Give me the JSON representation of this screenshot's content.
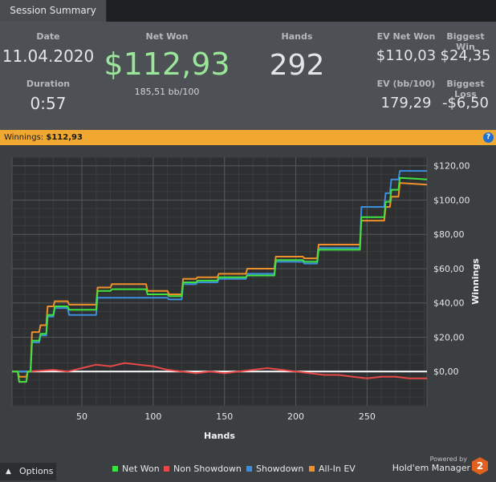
{
  "tab": {
    "label": "Session Summary"
  },
  "summary": {
    "date_label": "Date",
    "date_value": "11.04.2020",
    "duration_label": "Duration",
    "duration_value": "0:57",
    "net_won_label": "Net Won",
    "net_won_value": "$112,93",
    "bb_per_100": "185,51 bb/100",
    "hands_label": "Hands",
    "hands_value": "292",
    "ev_net_won_label": "EV Net Won",
    "ev_net_won_value": "$110,03",
    "biggest_win_label": "Biggest Win",
    "biggest_win_value": "$24,35",
    "ev_bb_label": "EV (bb/100)",
    "ev_bb_value": "179,29",
    "biggest_loss_label": "Biggest Loss",
    "biggest_loss_value": "-$6,50"
  },
  "winnings_bar": {
    "label": "Winnings:",
    "value": "$112,93",
    "help_icon": "question-icon"
  },
  "options": {
    "label": "Options",
    "icon": "caret-up-icon"
  },
  "brand": {
    "powered_by": "Powered by",
    "name": "Hold'em Manager",
    "badge": "2"
  },
  "chart_data": {
    "type": "line",
    "xlabel": "Hands",
    "ylabel": "Winnings",
    "xlim": [
      1,
      292
    ],
    "ylim": [
      -20,
      125
    ],
    "x_ticks": [
      50,
      100,
      150,
      200,
      250
    ],
    "x_tick_labels": [
      "50",
      "100",
      "150",
      "200",
      "250"
    ],
    "y_ticks": [
      0,
      20,
      40,
      60,
      80,
      100,
      120
    ],
    "y_tick_labels": [
      "$0,00",
      "$20,00",
      "$40,00",
      "$60,00",
      "$80,00",
      "$100,00",
      "$120,00"
    ],
    "grid": true,
    "legend": "bottom",
    "series": [
      {
        "name": "Net Won",
        "color": "#3fe33f",
        "x": [
          1,
          5,
          6,
          11,
          12,
          14,
          15,
          20,
          21,
          25,
          26,
          30,
          31,
          40,
          41,
          60,
          61,
          70,
          71,
          95,
          96,
          110,
          111,
          120,
          121,
          130,
          131,
          145,
          146,
          165,
          166,
          185,
          186,
          205,
          206,
          215,
          216,
          245,
          246,
          262,
          263,
          266,
          267,
          272,
          273,
          292
        ],
        "y": [
          0,
          0,
          -6,
          -6,
          0,
          0,
          18,
          18,
          22,
          22,
          33,
          33,
          38,
          38,
          36,
          36,
          47,
          47,
          48,
          48,
          45,
          45,
          44,
          44,
          52,
          52,
          53,
          53,
          55,
          55,
          56,
          56,
          65,
          65,
          64,
          64,
          71,
          71,
          90,
          90,
          99,
          99,
          106,
          106,
          113,
          112
        ]
      },
      {
        "name": "Non Showdown",
        "color": "#e84848",
        "x": [
          1,
          5,
          6,
          11,
          12,
          30,
          40,
          50,
          60,
          70,
          80,
          90,
          100,
          110,
          120,
          130,
          140,
          150,
          160,
          170,
          180,
          190,
          200,
          210,
          220,
          230,
          240,
          250,
          260,
          270,
          280,
          292
        ],
        "y": [
          0,
          0,
          -6,
          -6,
          0,
          1,
          0,
          2,
          4,
          3,
          5,
          4,
          3,
          1,
          0,
          -1,
          0,
          -1,
          0,
          1,
          2,
          1,
          0,
          -1,
          -2,
          -2,
          -3,
          -4,
          -3,
          -3,
          -4,
          -4
        ]
      },
      {
        "name": "Showdown",
        "color": "#3a8fe0",
        "x": [
          1,
          11,
          12,
          14,
          15,
          20,
          21,
          25,
          26,
          30,
          31,
          40,
          41,
          60,
          61,
          95,
          96,
          110,
          111,
          120,
          121,
          130,
          131,
          145,
          146,
          165,
          166,
          185,
          186,
          205,
          206,
          215,
          216,
          245,
          246,
          262,
          263,
          266,
          267,
          272,
          273,
          292
        ],
        "y": [
          0,
          0,
          0,
          0,
          17,
          17,
          21,
          21,
          32,
          32,
          37,
          37,
          33,
          33,
          43,
          43,
          43,
          43,
          42,
          42,
          51,
          51,
          52,
          52,
          54,
          54,
          57,
          57,
          64,
          64,
          63,
          63,
          72,
          72,
          96,
          96,
          104,
          104,
          112,
          112,
          117,
          117
        ]
      },
      {
        "name": "All-In EV",
        "color": "#f0902a",
        "x": [
          1,
          5,
          6,
          11,
          12,
          14,
          15,
          20,
          21,
          25,
          26,
          30,
          31,
          40,
          41,
          60,
          61,
          70,
          71,
          95,
          96,
          110,
          111,
          120,
          121,
          130,
          131,
          145,
          146,
          165,
          166,
          185,
          186,
          205,
          206,
          215,
          216,
          245,
          246,
          262,
          263,
          266,
          267,
          272,
          273,
          292
        ],
        "y": [
          0,
          0,
          -3,
          -3,
          0,
          0,
          23,
          23,
          27,
          27,
          38,
          38,
          41,
          41,
          39,
          39,
          49,
          49,
          51,
          51,
          47,
          47,
          45,
          45,
          54,
          54,
          55,
          55,
          57,
          57,
          60,
          60,
          67,
          67,
          66,
          66,
          74,
          74,
          88,
          88,
          96,
          96,
          102,
          102,
          110,
          109
        ]
      }
    ]
  }
}
